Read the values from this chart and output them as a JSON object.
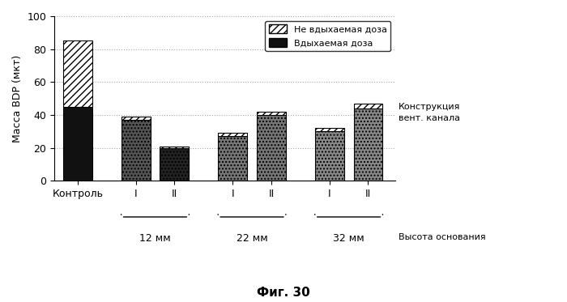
{
  "title": "Фиг. 30",
  "ylabel": "Масса BDP (мкт)",
  "ylim": [
    0,
    100
  ],
  "yticks": [
    0,
    20,
    40,
    60,
    80,
    100
  ],
  "right_label_line1": "Конструкция",
  "right_label_line2": "вент. канала",
  "bottom_label": "Высота основания",
  "legend_non_inhaled": "Не вдыхаемая доза",
  "legend_inhaled": "Вдыхаемая доза",
  "bars": [
    {
      "label": "Контроль",
      "group": "control",
      "inhaled": 45,
      "non_inhaled": 40,
      "main_color": "#111111",
      "main_hatch": "",
      "top_hatch": "///"
    },
    {
      "label": "I",
      "group": "12mm",
      "inhaled": 37,
      "non_inhaled": 2,
      "main_color": "#555555",
      "main_hatch": "....",
      "top_hatch": "///"
    },
    {
      "label": "II",
      "group": "12mm",
      "inhaled": 20,
      "non_inhaled": 1,
      "main_color": "#222222",
      "main_hatch": "....",
      "top_hatch": "///"
    },
    {
      "label": "I",
      "group": "22mm",
      "inhaled": 27,
      "non_inhaled": 2,
      "main_color": "#777777",
      "main_hatch": "....",
      "top_hatch": "///"
    },
    {
      "label": "II",
      "group": "22mm",
      "inhaled": 40,
      "non_inhaled": 2,
      "main_color": "#777777",
      "main_hatch": "....",
      "top_hatch": "///"
    },
    {
      "label": "I",
      "group": "32mm",
      "inhaled": 30,
      "non_inhaled": 2,
      "main_color": "#888888",
      "main_hatch": "....",
      "top_hatch": "///"
    },
    {
      "label": "II",
      "group": "32mm",
      "inhaled": 44,
      "non_inhaled": 3,
      "main_color": "#888888",
      "main_hatch": "....",
      "top_hatch": "///"
    }
  ],
  "group_labels": [
    {
      "group": "12mm",
      "text": "12 мм"
    },
    {
      "group": "22mm",
      "text": "22 мм"
    },
    {
      "group": "32mm",
      "text": "32 мм"
    }
  ],
  "bar_positions": [
    0,
    1.5,
    2.5,
    4.0,
    5.0,
    6.5,
    7.5
  ],
  "bar_width": 0.75,
  "background_color": "#ffffff",
  "grid_color": "#aaaaaa"
}
